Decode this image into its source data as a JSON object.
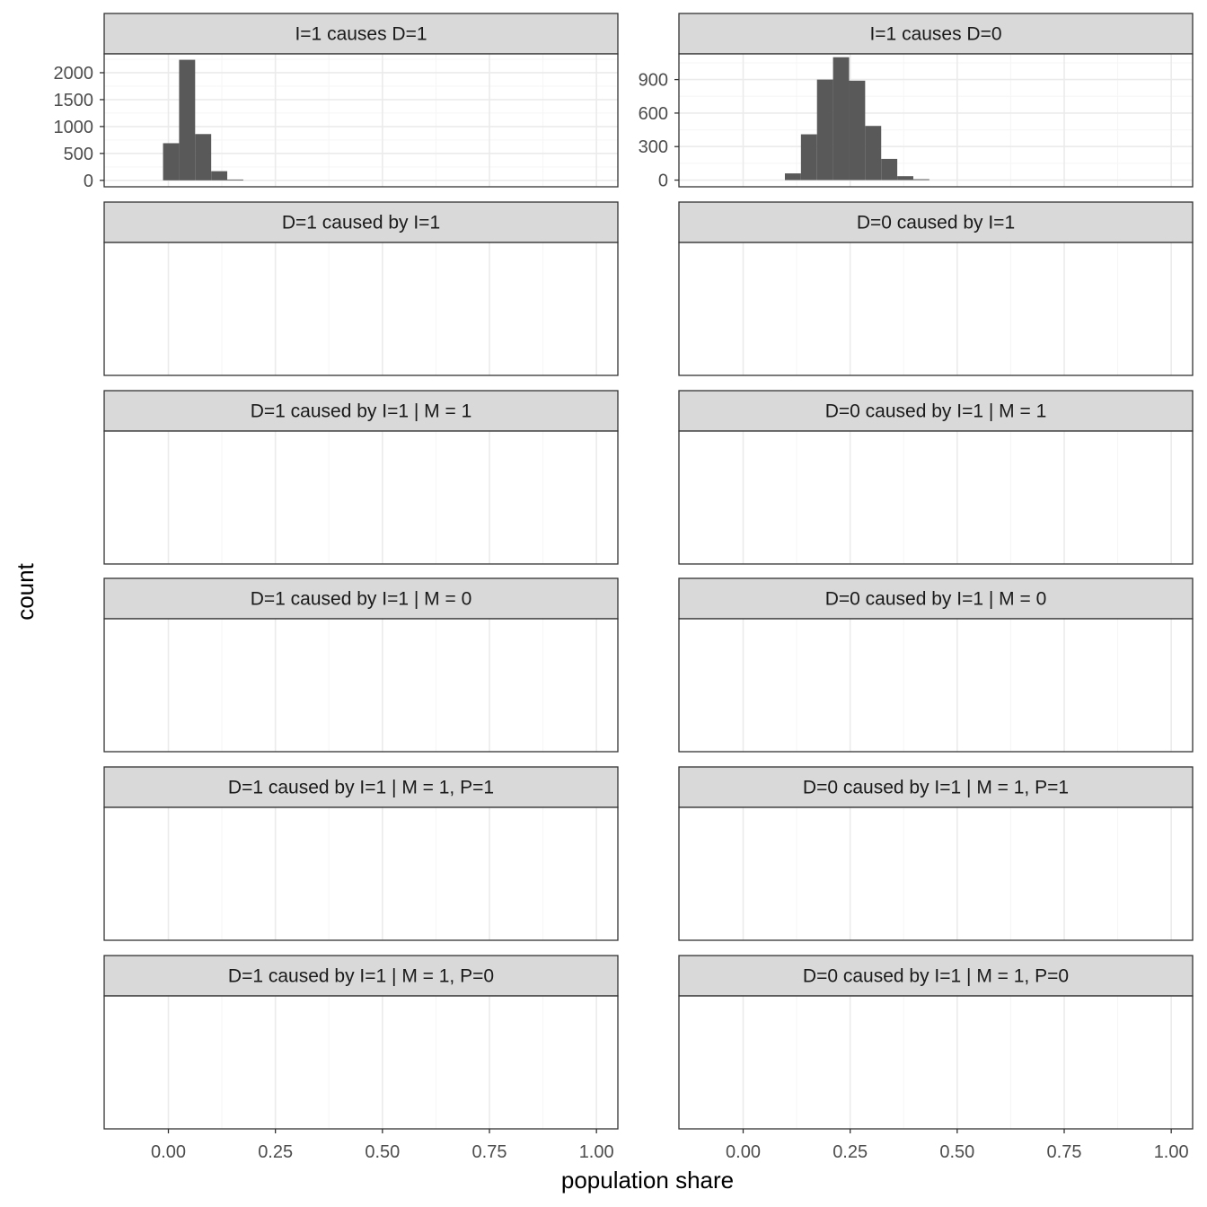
{
  "chart_data": {
    "type": "bar",
    "subtype": "faceted-histogram",
    "xlabel": "population share",
    "ylabel": "count",
    "x_ticks": [
      "0.00",
      "0.25",
      "0.50",
      "0.75",
      "1.00"
    ],
    "x_tick_values": [
      0,
      0.25,
      0.5,
      0.75,
      1.0
    ],
    "xlim": [
      -0.15,
      1.05
    ],
    "grid": true,
    "panels": [
      {
        "title": "I=1 causes D=1",
        "y_ticks": [
          "0",
          "500",
          "1000",
          "1500",
          "2000"
        ],
        "y_tick_values": [
          0,
          500,
          1000,
          1500,
          2000
        ],
        "ylim": [
          -120,
          2350
        ],
        "bins": [
          {
            "x0": -0.0125,
            "x1": 0.025,
            "count": 690
          },
          {
            "x0": 0.025,
            "x1": 0.0625,
            "count": 2240
          },
          {
            "x0": 0.0625,
            "x1": 0.1,
            "count": 860
          },
          {
            "x0": 0.1,
            "x1": 0.1375,
            "count": 170
          },
          {
            "x0": 0.1375,
            "x1": 0.175,
            "count": 15
          }
        ]
      },
      {
        "title": "I=1 causes D=0",
        "y_ticks": [
          "0",
          "300",
          "600",
          "900"
        ],
        "y_tick_values": [
          0,
          300,
          600,
          900
        ],
        "ylim": [
          -60,
          1130
        ],
        "bins": [
          {
            "x0": 0.0975,
            "x1": 0.135,
            "count": 60
          },
          {
            "x0": 0.135,
            "x1": 0.1725,
            "count": 410
          },
          {
            "x0": 0.1725,
            "x1": 0.21,
            "count": 900
          },
          {
            "x0": 0.21,
            "x1": 0.2475,
            "count": 1100
          },
          {
            "x0": 0.2475,
            "x1": 0.285,
            "count": 890
          },
          {
            "x0": 0.285,
            "x1": 0.3225,
            "count": 485
          },
          {
            "x0": 0.3225,
            "x1": 0.36,
            "count": 190
          },
          {
            "x0": 0.36,
            "x1": 0.3975,
            "count": 35
          },
          {
            "x0": 0.3975,
            "x1": 0.435,
            "count": 8
          }
        ]
      },
      {
        "title": "D=1 caused by I=1",
        "bins": []
      },
      {
        "title": "D=0 caused by I=1",
        "bins": []
      },
      {
        "title": "D=1 caused by I=1 | M = 1",
        "bins": []
      },
      {
        "title": "D=0 caused by I=1 | M = 1",
        "bins": []
      },
      {
        "title": "D=1 caused by I=1 | M = 0",
        "bins": []
      },
      {
        "title": "D=0 caused by I=1 | M = 0",
        "bins": []
      },
      {
        "title": "D=1 caused by I=1 | M = 1, P=1",
        "bins": []
      },
      {
        "title": "D=0 caused by I=1 | M = 1, P=1",
        "bins": []
      },
      {
        "title": "D=1 caused by I=1 | M = 1, P=0",
        "bins": []
      },
      {
        "title": "D=0 caused by I=1 | M = 1, P=0",
        "bins": []
      }
    ],
    "colors": {
      "bar": "#595959",
      "strip": "#d9d9d9",
      "border": "#333333",
      "grid_major": "#ebebeb",
      "grid_minor": "#f5f5f5"
    }
  }
}
